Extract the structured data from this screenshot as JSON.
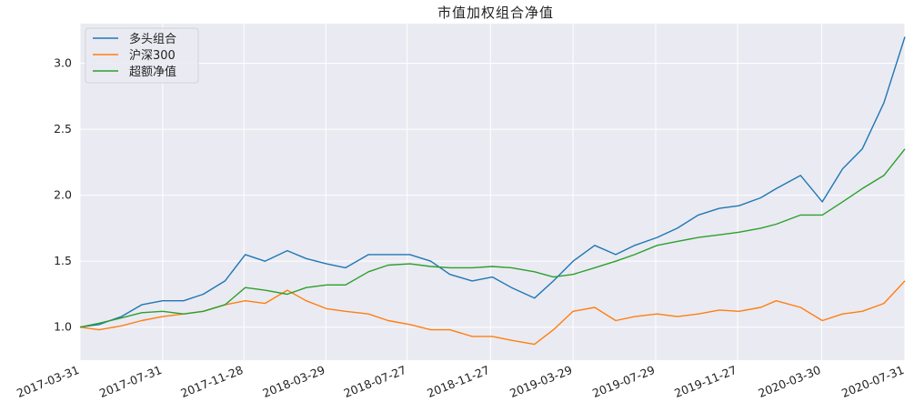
{
  "chart_data": {
    "type": "line",
    "title": "市值加权组合净值",
    "xlabel": "",
    "ylabel": "",
    "x_range": [
      "2017-03-31",
      "2020-07-31"
    ],
    "ylim": [
      0.75,
      3.3
    ],
    "grid": true,
    "legend_position": "top-left",
    "x_ticks": [
      "2017-03-31",
      "2017-07-31",
      "2017-11-28",
      "2018-03-29",
      "2018-07-27",
      "2018-11-27",
      "2019-03-29",
      "2019-07-29",
      "2019-11-27",
      "2020-03-30",
      "2020-07-31"
    ],
    "y_ticks": [
      1.0,
      1.5,
      2.0,
      2.5,
      3.0
    ],
    "y_tick_labels": [
      "1.0",
      "1.5",
      "2.0",
      "2.5",
      "3.0"
    ],
    "x": [
      "2017-03-31",
      "2017-04-28",
      "2017-05-31",
      "2017-06-30",
      "2017-07-31",
      "2017-08-31",
      "2017-09-29",
      "2017-10-31",
      "2017-11-30",
      "2017-12-29",
      "2018-01-31",
      "2018-02-28",
      "2018-03-30",
      "2018-04-27",
      "2018-05-31",
      "2018-06-29",
      "2018-07-31",
      "2018-08-31",
      "2018-09-28",
      "2018-10-31",
      "2018-11-30",
      "2018-12-28",
      "2019-01-31",
      "2019-02-28",
      "2019-03-29",
      "2019-04-30",
      "2019-05-31",
      "2019-06-28",
      "2019-07-31",
      "2019-08-30",
      "2019-09-30",
      "2019-10-31",
      "2019-11-29",
      "2019-12-31",
      "2020-01-23",
      "2020-02-28",
      "2020-03-31",
      "2020-04-30",
      "2020-05-29",
      "2020-06-30",
      "2020-07-31"
    ],
    "series": [
      {
        "name": "多头组合",
        "color": "#1f77b4",
        "values": [
          1.0,
          1.02,
          1.08,
          1.17,
          1.2,
          1.2,
          1.25,
          1.35,
          1.55,
          1.5,
          1.58,
          1.52,
          1.48,
          1.45,
          1.55,
          1.55,
          1.55,
          1.5,
          1.4,
          1.35,
          1.38,
          1.3,
          1.22,
          1.35,
          1.5,
          1.62,
          1.55,
          1.62,
          1.68,
          1.75,
          1.85,
          1.9,
          1.92,
          1.98,
          2.05,
          2.15,
          1.95,
          2.2,
          2.35,
          2.7,
          3.2
        ]
      },
      {
        "name": "沪深300",
        "color": "#ff7f0e",
        "values": [
          1.0,
          0.98,
          1.01,
          1.05,
          1.08,
          1.1,
          1.12,
          1.17,
          1.2,
          1.18,
          1.28,
          1.2,
          1.14,
          1.12,
          1.1,
          1.05,
          1.02,
          0.98,
          0.98,
          0.93,
          0.93,
          0.9,
          0.87,
          0.98,
          1.12,
          1.15,
          1.05,
          1.08,
          1.1,
          1.08,
          1.1,
          1.13,
          1.12,
          1.15,
          1.2,
          1.15,
          1.05,
          1.1,
          1.12,
          1.18,
          1.35
        ]
      },
      {
        "name": "超额净值",
        "color": "#2ca02c",
        "values": [
          1.0,
          1.03,
          1.07,
          1.11,
          1.12,
          1.1,
          1.12,
          1.17,
          1.3,
          1.28,
          1.25,
          1.3,
          1.32,
          1.32,
          1.42,
          1.47,
          1.48,
          1.46,
          1.45,
          1.45,
          1.46,
          1.45,
          1.42,
          1.38,
          1.4,
          1.45,
          1.5,
          1.55,
          1.62,
          1.65,
          1.68,
          1.7,
          1.72,
          1.75,
          1.78,
          1.85,
          1.85,
          1.95,
          2.05,
          2.15,
          2.35
        ]
      }
    ]
  }
}
